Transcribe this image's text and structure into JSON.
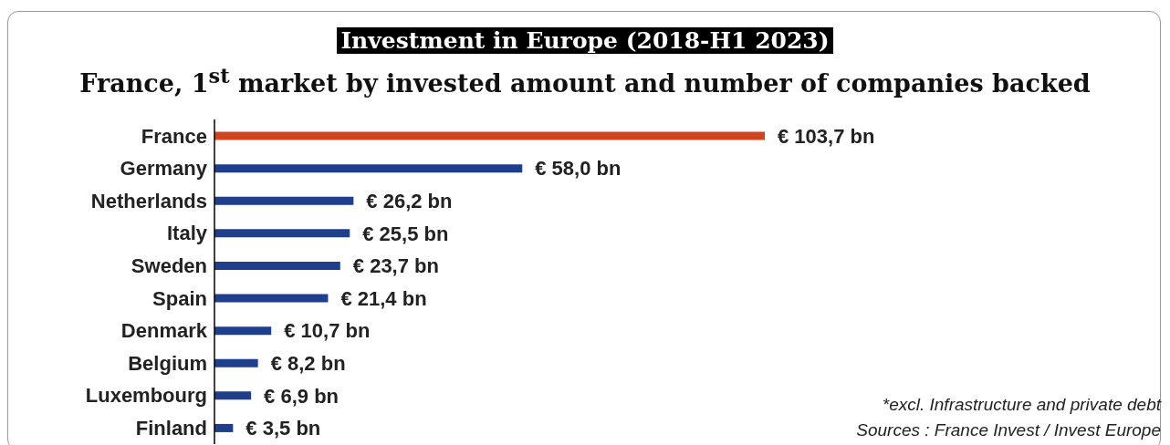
{
  "chart_data": {
    "type": "bar",
    "orientation": "horizontal",
    "title": "Investment in Europe (2018-H1 2023)",
    "subtitle": "France, 1$^{st}$ market by invested amount and number of companies backed",
    "categories": [
      "France",
      "Germany",
      "Netherlands",
      "Italy",
      "Sweden",
      "Spain",
      "Denmark",
      "Belgium",
      "Luxembourg",
      "Finland"
    ],
    "values": [
      103.7,
      58.0,
      26.2,
      25.5,
      23.7,
      21.4,
      10.7,
      8.2,
      6.9,
      3.5
    ],
    "value_labels": [
      "€ 103,7 bn",
      "€ 58,0 bn",
      "€ 26,2 bn",
      "€ 25,5 bn",
      "€ 23,7 bn",
      "€ 21,4 bn",
      "€ 10,7 bn",
      "€ 8,2 bn",
      "€ 6,9 bn",
      "€ 3,5 bn"
    ],
    "colors": [
      "#cf4520",
      "#1f3f8c",
      "#1f3f8c",
      "#1f3f8c",
      "#1f3f8c",
      "#1f3f8c",
      "#1f3f8c",
      "#1f3f8c",
      "#1f3f8c",
      "#1f3f8c"
    ],
    "annotations": [
      "*excl. Infrastructure and private debt",
      "Sources : France Invest / Invest Europe"
    ]
  }
}
